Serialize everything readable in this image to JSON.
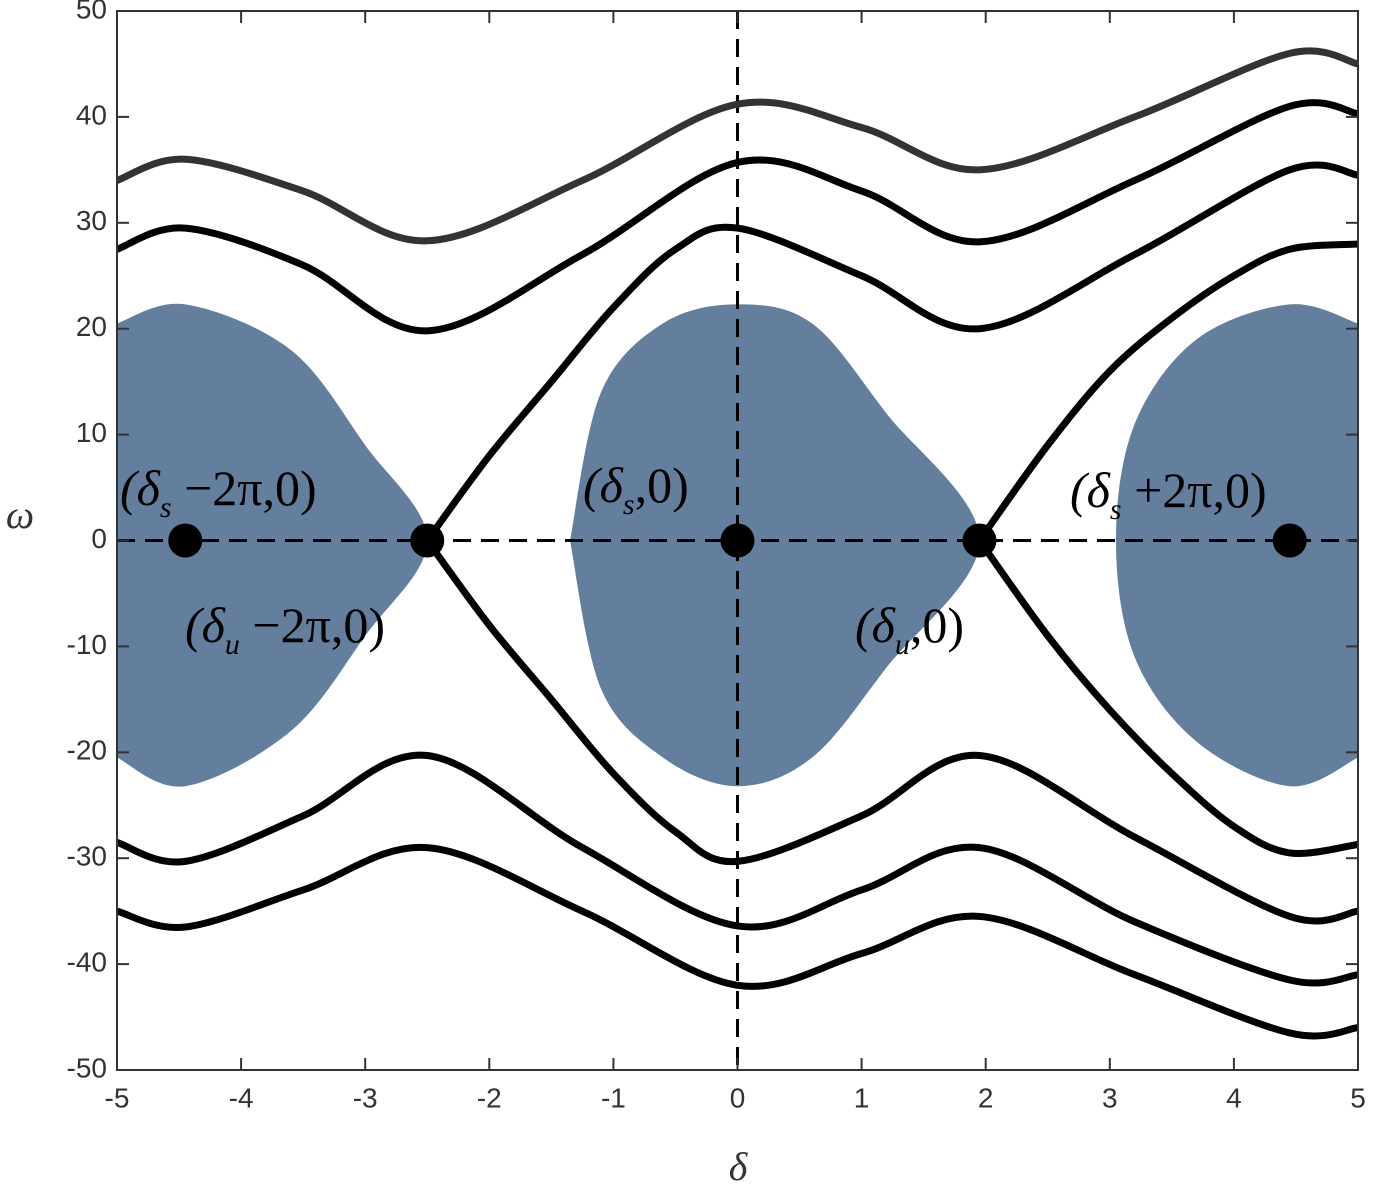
{
  "chart_data": {
    "type": "line",
    "xlabel": "δ",
    "ylabel": "ω",
    "xlim": [
      -5,
      5
    ],
    "ylim": [
      -50,
      50
    ],
    "xticks": [
      -5,
      -4,
      -3,
      -2,
      -1,
      0,
      1,
      2,
      3,
      4,
      5
    ],
    "yticks": [
      -50,
      -40,
      -30,
      -20,
      -10,
      0,
      10,
      20,
      30,
      40,
      50
    ],
    "region_color": "#647f9e",
    "regions": [
      {
        "x": [
          -5,
          -4.45,
          -3.6,
          -3.0,
          -2.5,
          -3.0,
          -3.6,
          -4.45,
          -5
        ],
        "y": [
          20.5,
          22.3,
          18,
          9,
          0,
          -9,
          -18,
          -23.2,
          -20.5
        ]
      },
      {
        "x": [
          -1.35,
          -1.1,
          -0.6,
          0,
          0.6,
          1.2,
          1.95,
          1.2,
          0.6,
          0,
          -0.6,
          -1.1,
          -1.35
        ],
        "y": [
          0,
          14,
          20.5,
          22.3,
          20.5,
          12,
          0,
          -12,
          -20.5,
          -23.2,
          -20.5,
          -14,
          0
        ]
      },
      {
        "x": [
          5,
          4.45,
          3.7,
          3.2,
          3.05,
          3.2,
          3.7,
          4.45,
          5
        ],
        "y": [
          20.5,
          22.3,
          19,
          11,
          0,
          -11,
          -19,
          -23.2,
          -20.5
        ]
      }
    ],
    "series": [
      {
        "color": "#333333",
        "x": [
          -5,
          -4.45,
          -3.5,
          -2.5,
          -1.25,
          0,
          1,
          1.95,
          3.2,
          4.45,
          5
        ],
        "values": [
          34,
          36,
          33,
          28.3,
          34,
          41.2,
          39,
          35,
          40,
          46,
          45
        ]
      },
      {
        "color": "#000000",
        "x": [
          -5,
          -4.45,
          -3.5,
          -2.5,
          -1.25,
          0,
          1,
          1.95,
          3.2,
          4.45,
          5
        ],
        "values": [
          27.5,
          29.5,
          26,
          19.8,
          27,
          35.7,
          33,
          28.2,
          34,
          41,
          40.3
        ]
      },
      {
        "color": "#000000",
        "x": [
          -2.5,
          -2,
          -1.5,
          -1,
          -0.5,
          0,
          1,
          1.95,
          3.2,
          4.45,
          5
        ],
        "values": [
          0,
          8,
          15,
          22,
          27.5,
          29.5,
          25,
          20,
          27,
          35,
          34.5
        ]
      },
      {
        "color": "#000000",
        "x": [
          1.95,
          2.5,
          3,
          3.5,
          4,
          4.45,
          5
        ],
        "values": [
          0,
          9,
          16,
          21,
          25,
          27.5,
          28
        ]
      },
      {
        "color": "#000000",
        "x": [
          -2.5,
          -2,
          -1.5,
          -1,
          -0.5,
          0,
          1,
          1.95,
          3.2,
          4.45,
          5
        ],
        "values": [
          0,
          -8,
          -15,
          -22,
          -27.5,
          -30.3,
          -26,
          -20.3,
          -28,
          -35.5,
          -35
        ]
      },
      {
        "color": "#000000",
        "x": [
          1.95,
          2.5,
          3,
          3.5,
          4,
          4.45,
          5
        ],
        "values": [
          0,
          -9,
          -16,
          -22,
          -27,
          -29.5,
          -28.7
        ]
      },
      {
        "color": "#000000",
        "x": [
          -5,
          -4.45,
          -3.5,
          -2.5,
          -1.25,
          0,
          1,
          1.95,
          3.2,
          4.45,
          5
        ],
        "values": [
          -28.5,
          -30.3,
          -26,
          -20.3,
          -29,
          -36.4,
          -33,
          -29,
          -36,
          -41.5,
          -41
        ]
      },
      {
        "color": "#000000",
        "x": [
          -5,
          -4.45,
          -3.5,
          -2.5,
          -1.25,
          0,
          1,
          1.95,
          3.2,
          4.45,
          5
        ],
        "values": [
          -35,
          -36.5,
          -33,
          -29,
          -35,
          -42,
          -39,
          -35.5,
          -41,
          -46.5,
          -46
        ]
      }
    ],
    "points": {
      "x": [
        -4.45,
        -2.5,
        0,
        1.95,
        4.45
      ],
      "values": [
        0,
        0,
        0,
        0,
        0
      ]
    },
    "annotations": [
      {
        "base": "(δ",
        "sub": "s",
        "tail": " −2π,0)"
      },
      {
        "base": "(δ",
        "sub": "u",
        "tail": " −2π,0)"
      },
      {
        "base": "(δ",
        "sub": "s",
        "tail": ",0)"
      },
      {
        "base": "(δ",
        "sub": "u",
        "tail": ",0)"
      },
      {
        "base": "(δ",
        "sub": "s",
        "tail": " +2π,0)"
      }
    ]
  }
}
